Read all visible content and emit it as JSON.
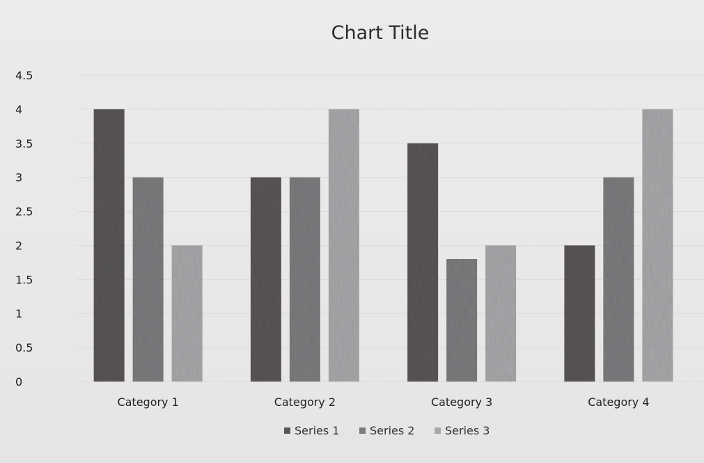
{
  "chart_data": {
    "type": "bar",
    "title": "Chart Title",
    "categories": [
      "Category 1",
      "Category 2",
      "Category 3",
      "Category 4"
    ],
    "series": [
      {
        "name": "Series 1",
        "values": [
          4.0,
          3.0,
          3.5,
          2.0
        ],
        "color": "#585557"
      },
      {
        "name": "Series 2",
        "values": [
          3.0,
          3.0,
          1.8,
          3.0
        ],
        "color": "#7c7a7d"
      },
      {
        "name": "Series 3",
        "values": [
          2.0,
          4.0,
          2.0,
          4.0
        ],
        "color": "#a8a6a9"
      }
    ],
    "yticks": [
      "0",
      "0.5",
      "1",
      "1.5",
      "2",
      "2.5",
      "3",
      "3.5",
      "4",
      "4.5"
    ],
    "ylim": [
      0,
      4.5
    ],
    "grid": true,
    "legend_position": "bottom"
  }
}
